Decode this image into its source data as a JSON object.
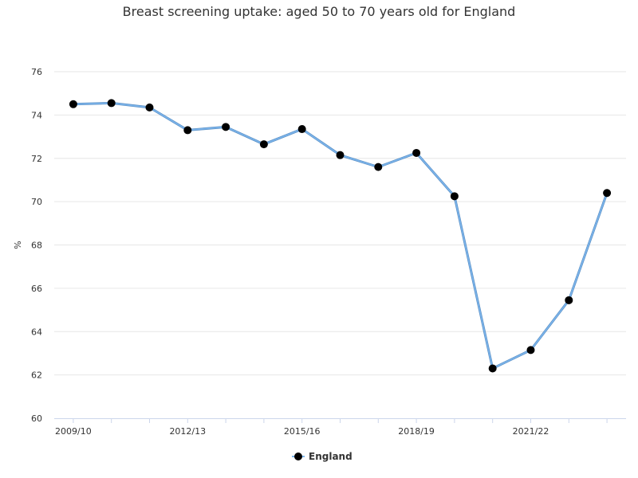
{
  "chart_data": {
    "type": "line",
    "title": "Breast screening uptake: aged 50 to 70 years old for England",
    "ylabel": "%",
    "ylim": [
      60,
      76
    ],
    "yticks": [
      60,
      62,
      64,
      66,
      68,
      70,
      72,
      74,
      76
    ],
    "x": [
      "2009/10",
      "2010/11",
      "2011/12",
      "2012/13",
      "2013/14",
      "2014/15",
      "2015/16",
      "2016/17",
      "2017/18",
      "2018/19",
      "2019/20",
      "2020/21",
      "2021/22",
      "2022/23",
      "2023/24"
    ],
    "xtick_labels": [
      "2009/10",
      "2012/13",
      "2015/16",
      "2018/19",
      "2021/22"
    ],
    "grid": true,
    "legend": "bottom-center",
    "series": [
      {
        "name": "England",
        "color": "#7cb5ec",
        "marker_color": "#000000",
        "values": [
          74.5,
          74.55,
          74.35,
          73.3,
          73.45,
          72.65,
          73.35,
          72.15,
          71.6,
          72.25,
          70.25,
          62.3,
          63.15,
          65.45,
          70.4
        ]
      }
    ]
  }
}
